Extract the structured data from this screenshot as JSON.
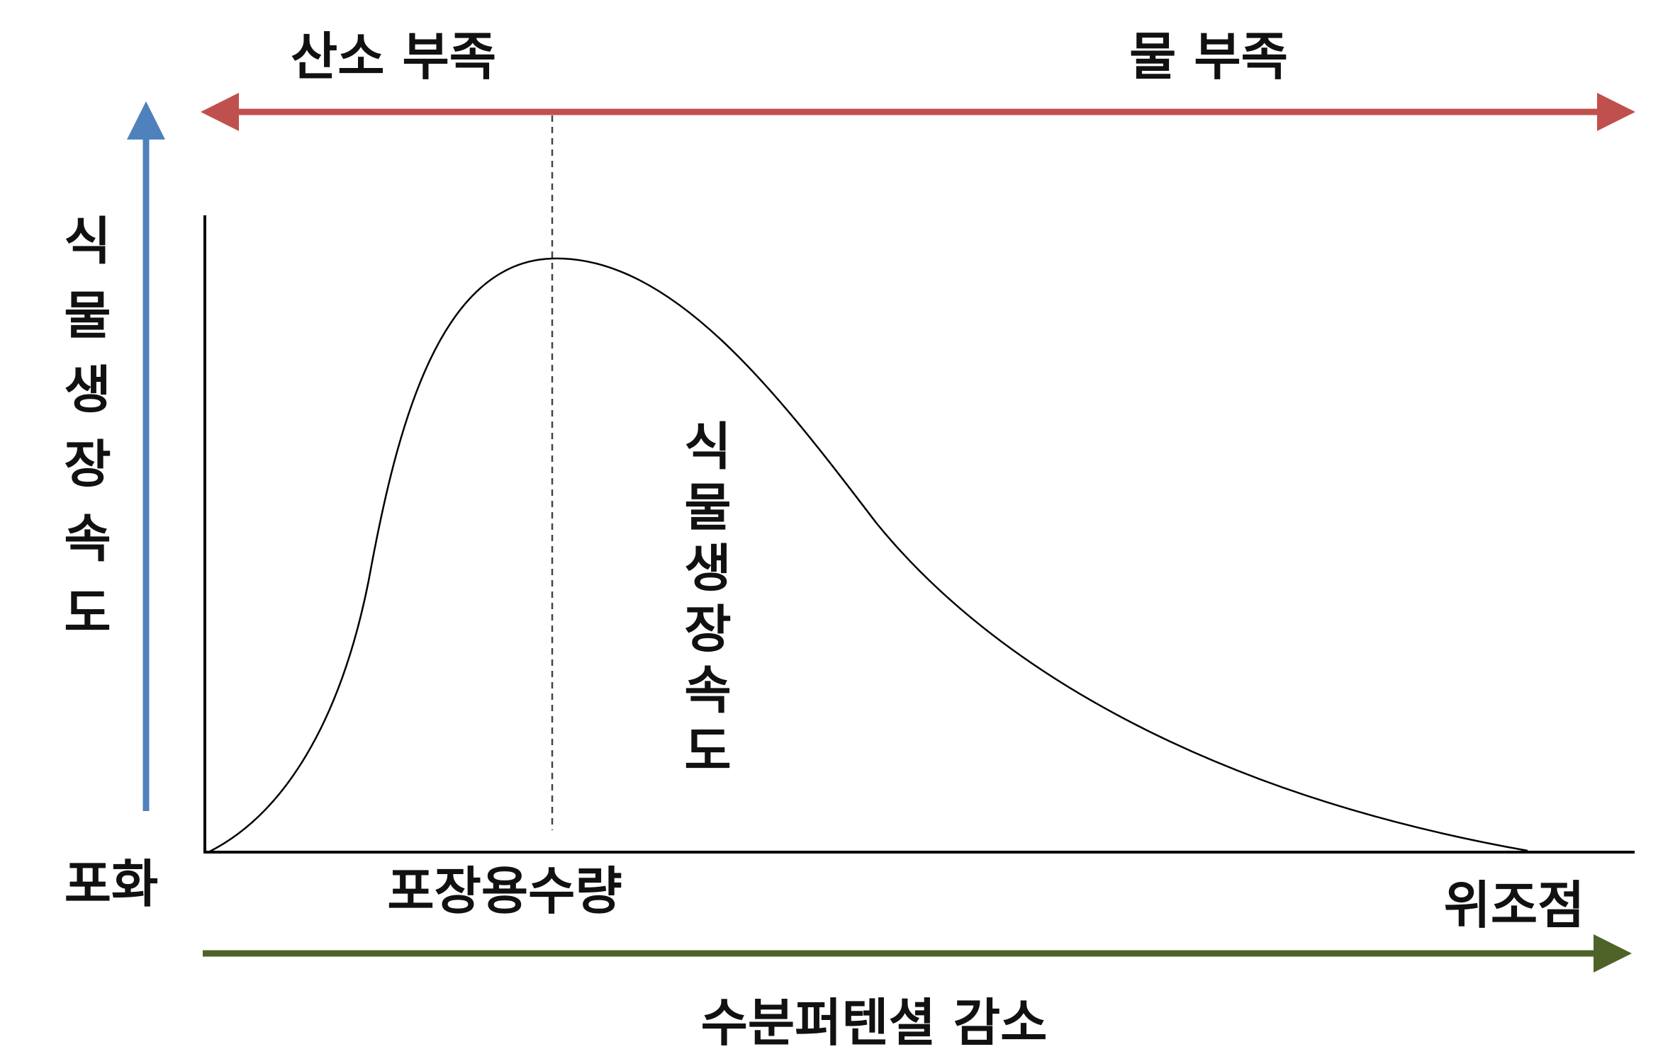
{
  "top_labels": {
    "left": "산소 부족",
    "right": "물 부족"
  },
  "y_axis_label": "식물생장속도",
  "curve_label": "식물생장속도",
  "x_labels": {
    "origin": "포화",
    "field_capacity": "포장용수량",
    "wilting_point": "위조점"
  },
  "x_axis_label": "수분퍼텐셜 감소"
}
